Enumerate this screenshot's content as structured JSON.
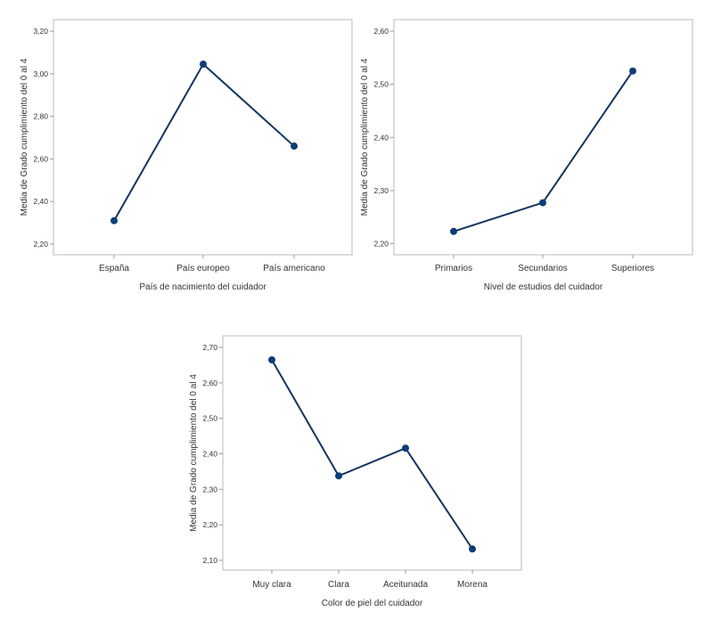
{
  "chart_data": [
    {
      "type": "line",
      "title": "",
      "xlabel": "País de nacimiento del cuidador",
      "ylabel": "Media de Grado cumplimiento del 0 al 4",
      "categories": [
        "España",
        "País europeo",
        "País americano"
      ],
      "values": [
        2.31,
        3.045,
        2.66
      ],
      "ylim": [
        2.2,
        3.2
      ],
      "yticks": [
        "2,20",
        "2,40",
        "2,60",
        "2,80",
        "3,00",
        "3,20"
      ],
      "grid": false,
      "color": "#0d3d78"
    },
    {
      "type": "line",
      "title": "",
      "xlabel": "Nivel de estudios del cuidador",
      "ylabel": "Media de Grado cumplimiento del 0 al 4",
      "categories": [
        "Primarios",
        "Secundarios",
        "Superiores"
      ],
      "values": [
        2.223,
        2.277,
        2.525
      ],
      "ylim": [
        2.2,
        2.6
      ],
      "yticks": [
        "2,20",
        "2,30",
        "2,40",
        "2,50",
        "2,60"
      ],
      "grid": false,
      "color": "#0d3d78"
    },
    {
      "type": "line",
      "title": "",
      "xlabel": "Color de piel del cuidador",
      "ylabel": "Media de Grado cumplimiento del 0 al 4",
      "categories": [
        "Muy clara",
        "Clara",
        "Aceitunada",
        "Morena"
      ],
      "values": [
        2.665,
        2.338,
        2.416,
        2.132
      ],
      "ylim": [
        2.1,
        2.7
      ],
      "yticks": [
        "2,10",
        "2,20",
        "2,30",
        "2,40",
        "2,50",
        "2,60",
        "2,70"
      ],
      "grid": false,
      "color": "#0d3d78"
    }
  ]
}
